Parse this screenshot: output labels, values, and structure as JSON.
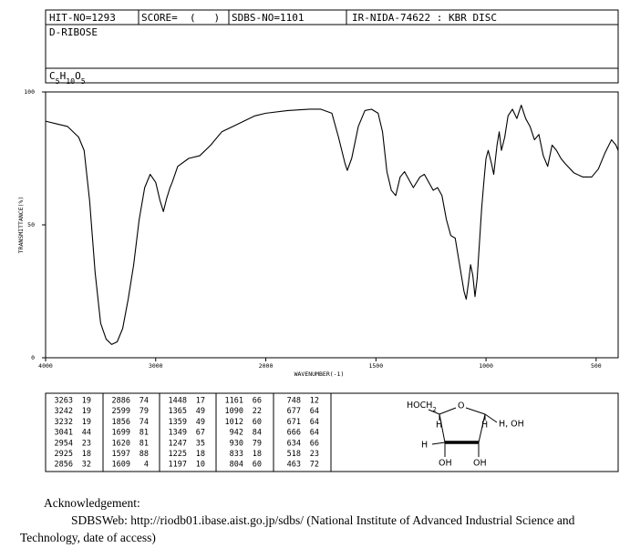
{
  "header": {
    "hit_no": "HIT-NO=1293",
    "score": "SCORE=  (   )",
    "sdbs_no": "SDBS-NO=1101",
    "method": "IR-NIDA-74622 : KBR DISC",
    "name": "D-RIBOSE",
    "formula": "C5H10O5"
  },
  "chart_data": {
    "type": "line",
    "x_label": "WAVENUMBER(-1)",
    "y_label": "TRANSMITTANCE(%)",
    "color": "#000000",
    "xlim": [
      4000,
      400
    ],
    "ylim": [
      0,
      100
    ],
    "xticks": [
      4000,
      3000,
      2000,
      1500,
      1000,
      500
    ],
    "yticks": [
      0,
      50,
      100
    ],
    "x": [
      4000,
      3900,
      3800,
      3700,
      3650,
      3600,
      3550,
      3500,
      3450,
      3400,
      3350,
      3300,
      3250,
      3200,
      3150,
      3100,
      3050,
      3000,
      2960,
      2930,
      2900,
      2870,
      2850,
      2800,
      2700,
      2600,
      2500,
      2400,
      2300,
      2200,
      2100,
      2000,
      1900,
      1800,
      1750,
      1700,
      1670,
      1640,
      1630,
      1610,
      1580,
      1550,
      1520,
      1490,
      1470,
      1450,
      1430,
      1410,
      1390,
      1370,
      1350,
      1330,
      1300,
      1280,
      1260,
      1240,
      1220,
      1200,
      1180,
      1160,
      1140,
      1120,
      1100,
      1090,
      1080,
      1070,
      1060,
      1050,
      1040,
      1020,
      1010,
      1000,
      990,
      975,
      965,
      950,
      940,
      930,
      915,
      900,
      880,
      860,
      840,
      820,
      800,
      780,
      760,
      740,
      720,
      700,
      680,
      660,
      640,
      600,
      560,
      520,
      490,
      460,
      430,
      410,
      400
    ],
    "values": [
      89,
      88,
      87,
      83,
      78,
      59,
      32,
      13,
      7,
      5,
      6,
      11,
      22,
      35,
      52,
      64,
      69,
      66,
      59,
      55,
      60,
      64,
      66,
      72,
      75,
      76,
      80,
      85,
      87,
      89,
      91,
      92,
      93,
      93.5,
      93.5,
      92,
      83,
      73,
      70.5,
      75,
      87,
      93,
      93.5,
      92,
      85,
      70,
      63,
      61,
      68,
      70,
      67,
      64,
      68,
      69,
      66,
      63,
      64,
      61,
      52,
      46,
      45,
      35,
      25,
      22,
      28,
      35,
      31,
      23,
      30,
      56,
      66,
      75,
      78,
      73,
      69,
      80,
      85,
      78,
      83,
      91,
      93.5,
      90,
      95,
      90,
      87,
      82,
      84,
      76,
      72,
      80,
      78,
      75,
      73,
      69.5,
      68,
      68,
      71,
      77,
      82,
      80,
      78
    ]
  },
  "peaks": [
    [
      [
        3263,
        19
      ],
      [
        3242,
        19
      ],
      [
        3232,
        19
      ],
      [
        3041,
        44
      ],
      [
        2954,
        23
      ],
      [
        2925,
        18
      ],
      [
        2856,
        32
      ]
    ],
    [
      [
        2886,
        74
      ],
      [
        2599,
        79
      ],
      [
        1856,
        74
      ],
      [
        1699,
        81
      ],
      [
        1620,
        81
      ],
      [
        1597,
        88
      ],
      [
        1609,
        4
      ]
    ],
    [
      [
        1448,
        17
      ],
      [
        1365,
        49
      ],
      [
        1359,
        49
      ],
      [
        1349,
        67
      ],
      [
        1247,
        35
      ],
      [
        1225,
        18
      ],
      [
        1197,
        10
      ]
    ],
    [
      [
        1161,
        66
      ],
      [
        1090,
        22
      ],
      [
        1012,
        60
      ],
      [
        942,
        84
      ],
      [
        930,
        79
      ],
      [
        833,
        18
      ],
      [
        804,
        60
      ]
    ],
    [
      [
        748,
        12
      ],
      [
        677,
        64
      ],
      [
        671,
        64
      ],
      [
        666,
        64
      ],
      [
        634,
        66
      ],
      [
        518,
        23
      ],
      [
        463,
        72
      ]
    ]
  ],
  "structure": {
    "labels": [
      "HOCH2",
      "O",
      "H",
      "H",
      "H, OH",
      "H",
      "OH",
      "OH"
    ]
  },
  "acknowledgement": {
    "title": "Acknowledgement:",
    "text": "SDBSWeb: http://riodb01.ibase.aist.go.jp/sdbs/ (National Institute of Advanced Industrial Science and Technology, date of access)"
  }
}
